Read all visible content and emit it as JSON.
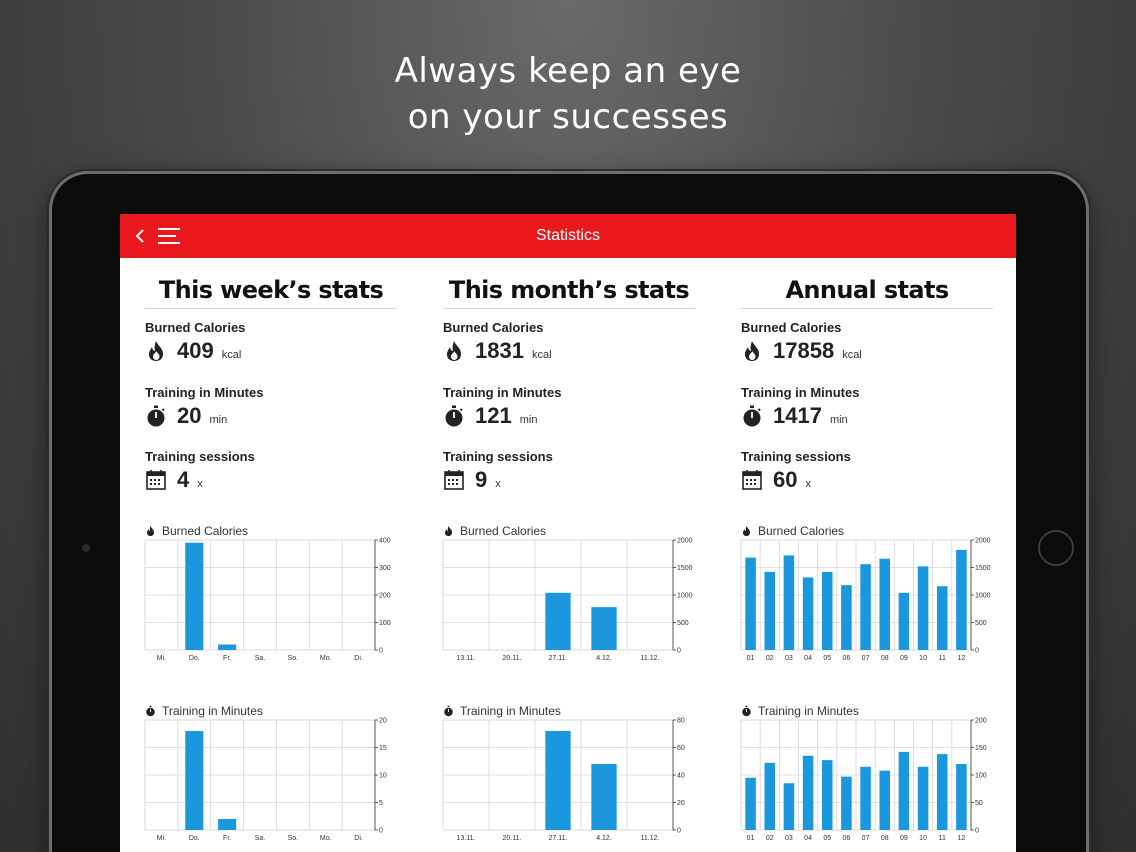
{
  "headline": {
    "line1": "Always keep an eye",
    "line2": "on your successes"
  },
  "appbar": {
    "title": "Statistics",
    "color": "#e8181c"
  },
  "labels": {
    "burned_calories": "Burned Calories",
    "training_minutes": "Training in Minutes",
    "training_sessions": "Training sessions",
    "kcal": "kcal",
    "min": "min",
    "times": "x"
  },
  "icons": [
    "back-icon",
    "menu-icon",
    "flame-icon",
    "stopwatch-icon",
    "calendar-icon"
  ],
  "bar_color": "#1b97dd",
  "columns": [
    {
      "title": "This week’s stats",
      "calories": "409",
      "minutes": "20",
      "sessions": "4"
    },
    {
      "title": "This month’s stats",
      "calories": "1831",
      "minutes": "121",
      "sessions": "9"
    },
    {
      "title": "Annual stats",
      "calories": "17858",
      "minutes": "1417",
      "sessions": "60"
    }
  ],
  "chart_data": [
    {
      "type": "bar",
      "title": "Burned Calories",
      "categories": [
        "Mi.",
        "Do.",
        "Fr.",
        "Sa.",
        "So.",
        "Mo.",
        "Di."
      ],
      "values": [
        0,
        390,
        20,
        0,
        0,
        0,
        0
      ],
      "ylim": [
        0,
        400
      ],
      "yticks": [
        0,
        100,
        200,
        300,
        400
      ]
    },
    {
      "type": "bar",
      "title": "Burned Calories",
      "categories": [
        "13.11.",
        "20.11.",
        "27.11.",
        "4.12.",
        "11.12."
      ],
      "values": [
        0,
        0,
        1040,
        780,
        0
      ],
      "ylim": [
        0,
        2000
      ],
      "yticks": [
        0,
        500,
        1000,
        1500,
        2000
      ]
    },
    {
      "type": "bar",
      "title": "Burned Calories",
      "categories": [
        "01",
        "02",
        "03",
        "04",
        "05",
        "06",
        "07",
        "08",
        "09",
        "10",
        "11",
        "12"
      ],
      "values": [
        1680,
        1420,
        1720,
        1320,
        1420,
        1180,
        1560,
        1660,
        1040,
        1520,
        1160,
        1820
      ],
      "ylim": [
        0,
        2000
      ],
      "yticks": [
        0,
        500,
        1000,
        1500,
        2000
      ]
    },
    {
      "type": "bar",
      "title": "Training in Minutes",
      "categories": [
        "Mi.",
        "Do.",
        "Fr.",
        "Sa.",
        "So.",
        "Mo.",
        "Di."
      ],
      "values": [
        0,
        18,
        2,
        0,
        0,
        0,
        0
      ],
      "ylim": [
        0,
        20
      ],
      "yticks": [
        0,
        5,
        10,
        15,
        20
      ]
    },
    {
      "type": "bar",
      "title": "Training in Minutes",
      "categories": [
        "13.11.",
        "20.11.",
        "27.11.",
        "4.12.",
        "11.12."
      ],
      "values": [
        0,
        0,
        72,
        48,
        0
      ],
      "ylim": [
        0,
        80
      ],
      "yticks": [
        0,
        20,
        40,
        60,
        80
      ]
    },
    {
      "type": "bar",
      "title": "Training in Minutes",
      "categories": [
        "01",
        "02",
        "03",
        "04",
        "05",
        "06",
        "07",
        "08",
        "09",
        "10",
        "11",
        "12"
      ],
      "values": [
        95,
        122,
        85,
        135,
        127,
        97,
        115,
        108,
        142,
        115,
        138,
        120
      ],
      "ylim": [
        0,
        200
      ],
      "yticks": [
        0,
        50,
        100,
        150,
        200
      ]
    }
  ]
}
